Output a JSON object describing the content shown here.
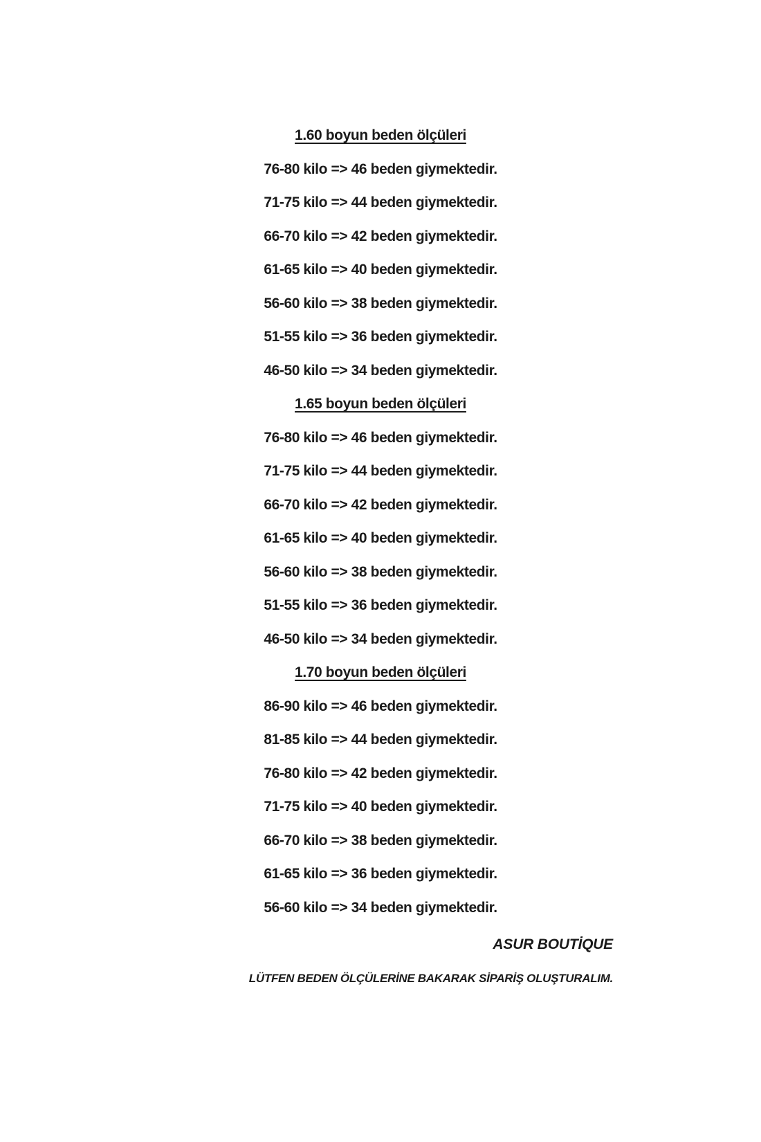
{
  "page": {
    "background_color": "#ffffff",
    "text_color": "#1a1a1a"
  },
  "sections": [
    {
      "heading": "1.60 boyun beden ölçüleri",
      "rows": [
        "76-80 kilo => 46 beden giymektedir.",
        "71-75 kilo => 44 beden giymektedir.",
        "66-70 kilo => 42 beden giymektedir.",
        "61-65 kilo => 40 beden giymektedir.",
        "56-60 kilo => 38 beden giymektedir.",
        "51-55 kilo => 36 beden giymektedir.",
        "46-50 kilo => 34 beden giymektedir."
      ]
    },
    {
      "heading": "1.65 boyun beden ölçüleri",
      "rows": [
        "76-80 kilo => 46 beden giymektedir.",
        "71-75 kilo => 44 beden giymektedir.",
        "66-70 kilo => 42 beden giymektedir.",
        "61-65 kilo => 40 beden giymektedir.",
        "56-60 kilo => 38 beden giymektedir.",
        "51-55 kilo => 36 beden giymektedir.",
        "46-50 kilo => 34 beden giymektedir."
      ]
    },
    {
      "heading": "1.70 boyun beden ölçüleri",
      "rows": [
        "86-90 kilo => 46 beden giymektedir.",
        "81-85 kilo => 44 beden giymektedir.",
        "76-80 kilo => 42 beden giymektedir.",
        "71-75 kilo => 40 beden giymektedir.",
        "66-70 kilo => 38 beden giymektedir.",
        "61-65 kilo => 36 beden giymektedir.",
        "56-60 kilo => 34 beden giymektedir."
      ]
    }
  ],
  "footer": {
    "brand": "ASUR BOUTİQUE",
    "note": "LÜTFEN BEDEN ÖLÇÜLERİNE BAKARAK SİPARİŞ OLUŞTURALIM."
  }
}
